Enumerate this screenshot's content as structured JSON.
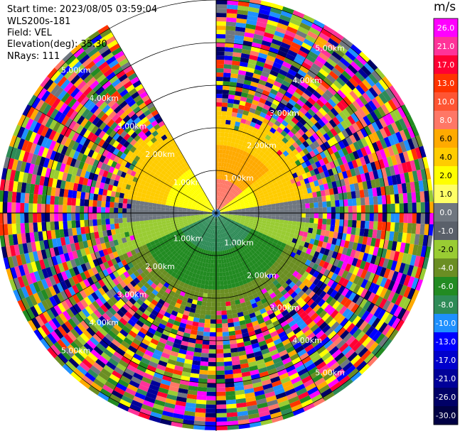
{
  "header": {
    "start_time": "Start time: 2023/08/05 03:59:04",
    "instrument": "WLS200s-181",
    "field": "Field: VEL",
    "elevation": "Elevation(deg): 35.30",
    "nrays": "NRays: 111"
  },
  "chart_data": {
    "type": "heatmap",
    "projection": "polar-ppi",
    "field": "VEL",
    "unit": "m/s",
    "range_rings_km": [
      "1.00km",
      "2.00km",
      "3.00km",
      "4.00km",
      "5.00km"
    ],
    "scan_gap_deg": [
      330,
      360
    ],
    "colorbar": {
      "unit": "m/s",
      "ticks": [
        "26.0",
        "21.0",
        "17.0",
        "13.0",
        "10.0",
        "8.0",
        "6.0",
        "4.0",
        "2.0",
        "1.0",
        "0.0",
        "-1.0",
        "-2.0",
        "-4.0",
        "-6.0",
        "-8.0",
        "-10.0",
        "-13.0",
        "-17.0",
        "-21.0",
        "-26.0",
        "-30.0"
      ],
      "colors": [
        "#ff00ff",
        "#ff3399",
        "#ff0033",
        "#ff3300",
        "#ff5533",
        "#ff7766",
        "#ffaa00",
        "#ffcc00",
        "#ffff00",
        "#ffff66",
        "#707780",
        "#5a606a",
        "#99cc33",
        "#6b8e23",
        "#228b22",
        "#2e8b57",
        "#1e90ff",
        "#0000ff",
        "#0000cc",
        "#000099",
        "#000066",
        "#000044"
      ]
    }
  }
}
